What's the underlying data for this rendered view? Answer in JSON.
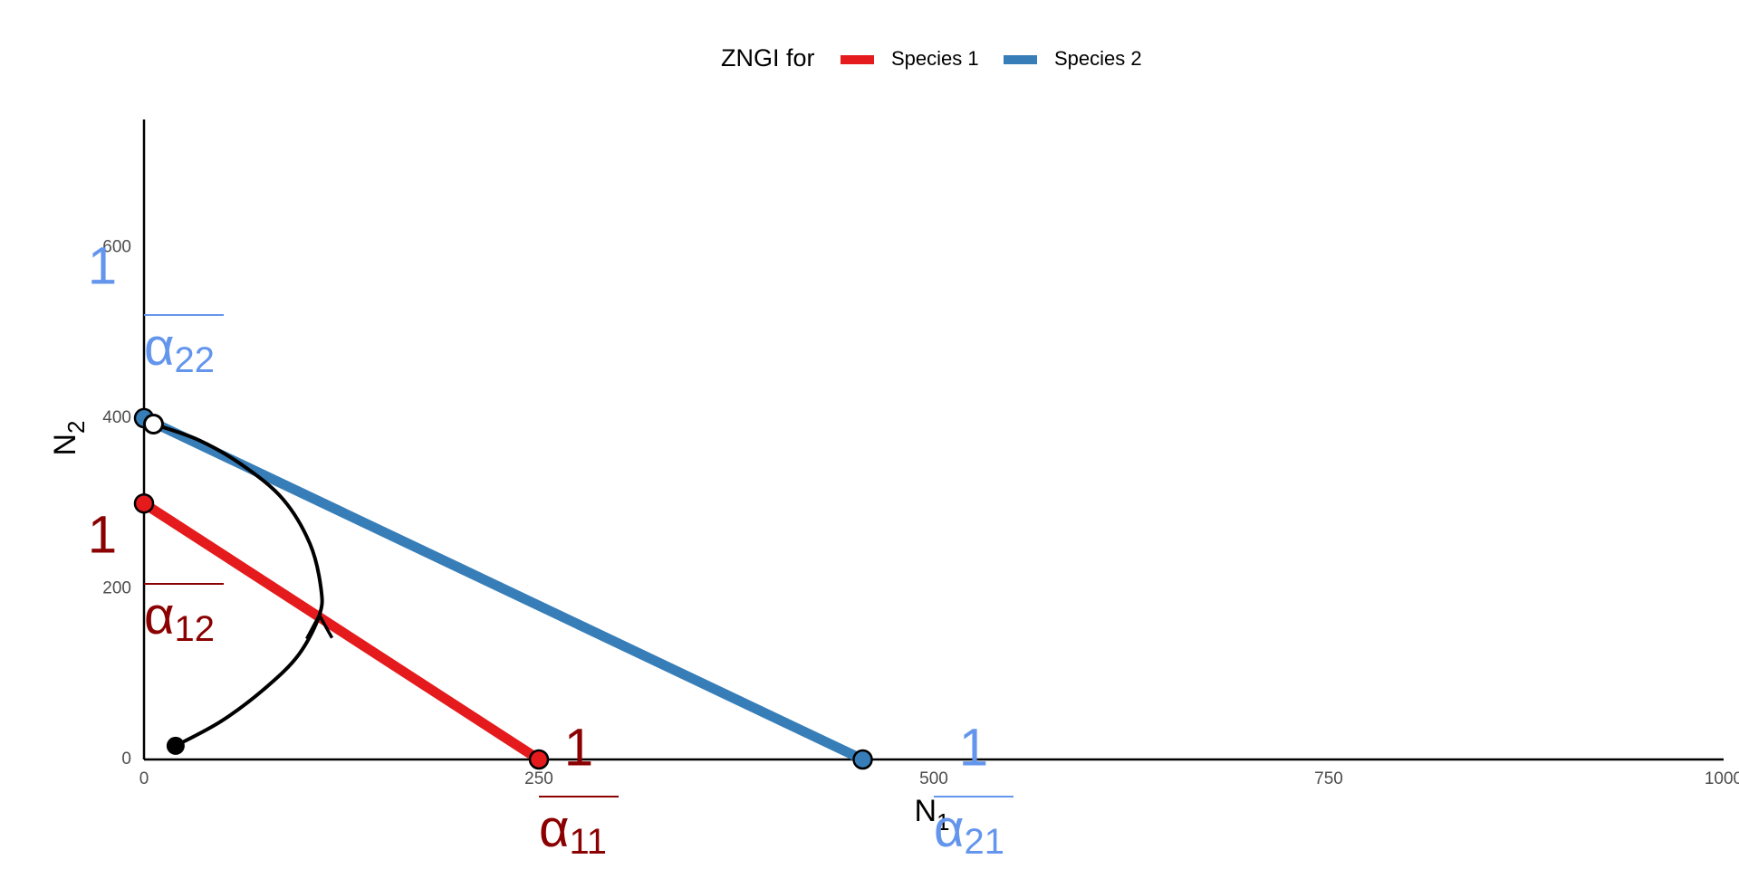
{
  "chart_data": {
    "type": "phase",
    "legend_title": "ZNGI for",
    "xlabel": "N",
    "xlabel_sub": "1",
    "ylabel": "N",
    "ylabel_sub": "2",
    "xlim": [
      0,
      1000
    ],
    "xticks": [
      0,
      250,
      500,
      750,
      1000
    ],
    "ylim": [
      0,
      750
    ],
    "yticks": [
      0,
      200,
      400,
      600
    ],
    "series": [
      {
        "name": "Species 1",
        "color": "#e41a1c",
        "x": [
          0,
          250
        ],
        "values": [
          300,
          0
        ]
      },
      {
        "name": "Species 2",
        "color": "#377eb8",
        "x": [
          0,
          455
        ],
        "values": [
          400,
          0
        ]
      }
    ],
    "trajectory": {
      "color": "#000000",
      "x": [
        20,
        49,
        77,
        98,
        111,
        112,
        105,
        88,
        63,
        35,
        6
      ],
      "y": [
        16,
        45,
        84,
        123,
        169,
        201,
        253,
        305,
        344,
        374,
        393
      ]
    },
    "annotations": [
      {
        "numerator": "1",
        "symbol": "α",
        "subscript": "22",
        "color": "#6495ed"
      },
      {
        "numerator": "1",
        "symbol": "α",
        "subscript": "12",
        "color": "#8b0000"
      },
      {
        "numerator": "1",
        "symbol": "α",
        "subscript": "11",
        "color": "#8b0000"
      },
      {
        "numerator": "1",
        "symbol": "α",
        "subscript": "21",
        "color": "#6495ed"
      }
    ]
  }
}
